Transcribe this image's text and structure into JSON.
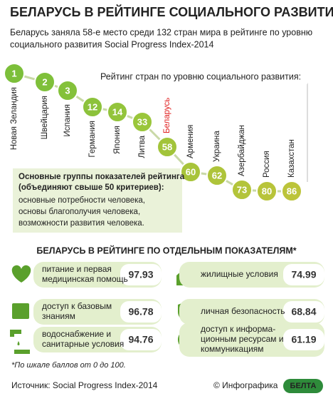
{
  "header": {
    "title": "БЕЛАРУСЬ В РЕЙТИНГЕ СОЦИАЛЬНОГО РАЗВИТИЯ",
    "subtitle": [
      "Беларусь заняла 58-е место среди 132 стран мира в рейтинге по уровню",
      "социального развития Social Progress Index-2014"
    ]
  },
  "ranking": {
    "label": "Рейтинг стран по уровню социального развития:",
    "countries": [
      {
        "name": "Новая Зеландия",
        "rank": 1
      },
      {
        "name": "Швейцария",
        "rank": 2
      },
      {
        "name": "Испания",
        "rank": 3
      },
      {
        "name": "Германия",
        "rank": 12
      },
      {
        "name": "Япония",
        "rank": 14
      },
      {
        "name": "Литва",
        "rank": 33
      },
      {
        "name": "Беларусь",
        "rank": 58
      },
      {
        "name": "Армения",
        "rank": 60
      },
      {
        "name": "Украина",
        "rank": 62
      },
      {
        "name": "Азербайджан",
        "rank": 73
      },
      {
        "name": "Россия",
        "rank": 80
      },
      {
        "name": "Казахстан",
        "rank": 86
      }
    ]
  },
  "groups": {
    "title": [
      "Основные группы показателей рейтинга",
      "(объединяют свыше 50 критериев):"
    ],
    "items": [
      "основные потребности человека,",
      "основы благополучия человека,",
      "возможности развития человека."
    ]
  },
  "indicators": {
    "title": "БЕЛАРУСЬ В РЕЙТИНГЕ ПО ОТДЕЛЬНЫМ ПОКАЗАТЕЛЯМ*",
    "items": [
      {
        "label": [
          "питание и первая",
          "медицинская помощь"
        ],
        "score": 97.93
      },
      {
        "label": [
          "доступ к базовым",
          "знаниям"
        ],
        "score": 96.78
      },
      {
        "label": [
          "водоснабжение и",
          "санитарные условия"
        ],
        "score": 94.76
      },
      {
        "label": [
          "жилищные условия"
        ],
        "score": 74.99
      },
      {
        "label": [
          "личная безопасность"
        ],
        "score": 68.84
      },
      {
        "label": [
          "доступ к информа-",
          "ционным ресурсам и",
          "коммуникациям"
        ],
        "score": 61.19
      }
    ]
  },
  "footnote": "*По шкале баллов от 0 до 100.",
  "source": "Источник: Social Progress Index-2014",
  "credit": "© Инфографика",
  "logo": "БЕЛТА"
}
